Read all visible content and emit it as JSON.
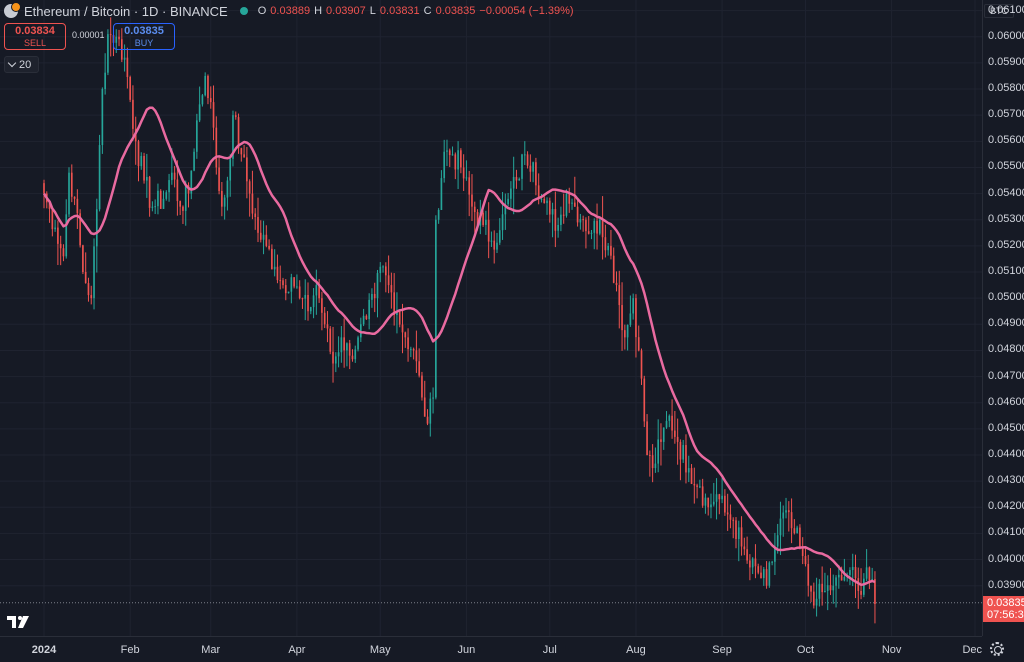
{
  "header": {
    "title": "Ethereum / Bitcoin · 1D · BINANCE",
    "ohlc": [
      {
        "k": "O",
        "v": "0.03889"
      },
      {
        "k": "H",
        "v": "0.03907"
      },
      {
        "k": "L",
        "v": "0.03831"
      },
      {
        "k": "C",
        "v": "0.03835"
      }
    ],
    "change": "−0.00054 (−1.39%)"
  },
  "trade": {
    "sell_price": "0.03834",
    "sell_label": "SELL",
    "spread": "0.00001",
    "buy_price": "0.03835",
    "buy_label": "BUY"
  },
  "indicator": {
    "label": "20"
  },
  "price_axis": {
    "currency": "BTC",
    "ticks": [
      "0.06100",
      "0.06000",
      "0.05900",
      "0.05800",
      "0.05700",
      "0.05600",
      "0.05500",
      "0.05400",
      "0.05300",
      "0.05200",
      "0.05100",
      "0.05000",
      "0.04900",
      "0.04800",
      "0.04700",
      "0.04600",
      "0.04500",
      "0.04400",
      "0.04300",
      "0.04200",
      "0.04100",
      "0.04000",
      "0.03900"
    ],
    "last_price": "0.03835",
    "countdown": "07:56:34"
  },
  "time_axis": {
    "ticks": [
      "2024",
      "Feb",
      "Mar",
      "Apr",
      "May",
      "Jun",
      "Jul",
      "Aug",
      "Sep",
      "Oct",
      "Nov",
      "Dec"
    ]
  },
  "colors": {
    "up": "#26a69a",
    "down": "#ef5350",
    "ma": "#e96aa0",
    "background": "#161a25"
  },
  "chart_data": {
    "type": "candlestick",
    "symbol": "ETHBTC",
    "interval": "1D",
    "ylim": [
      0.0383,
      0.0611
    ],
    "ma_period": 20,
    "anchors": [
      [
        "2024-01-01",
        0.054
      ],
      [
        "2024-01-05",
        0.0527
      ],
      [
        "2024-01-08",
        0.0516
      ],
      [
        "2024-01-10",
        0.0548
      ],
      [
        "2024-01-12",
        0.0538
      ],
      [
        "2024-01-15",
        0.051
      ],
      [
        "2024-01-18",
        0.05
      ],
      [
        "2024-01-20",
        0.0534
      ],
      [
        "2024-01-22",
        0.058
      ],
      [
        "2024-01-24",
        0.0601
      ],
      [
        "2024-01-27",
        0.06
      ],
      [
        "2024-01-30",
        0.0592
      ],
      [
        "2024-02-03",
        0.056
      ],
      [
        "2024-02-06",
        0.0545
      ],
      [
        "2024-02-09",
        0.0535
      ],
      [
        "2024-02-13",
        0.0538
      ],
      [
        "2024-02-16",
        0.0548
      ],
      [
        "2024-02-19",
        0.0535
      ],
      [
        "2024-02-22",
        0.054
      ],
      [
        "2024-02-25",
        0.0568
      ],
      [
        "2024-02-28",
        0.0585
      ],
      [
        "2024-03-01",
        0.0575
      ],
      [
        "2024-03-03",
        0.055
      ],
      [
        "2024-03-05",
        0.0535
      ],
      [
        "2024-03-07",
        0.0545
      ],
      [
        "2024-03-09",
        0.057
      ],
      [
        "2024-03-12",
        0.0555
      ],
      [
        "2024-03-15",
        0.054
      ],
      [
        "2024-03-18",
        0.0525
      ],
      [
        "2024-03-21",
        0.052
      ],
      [
        "2024-03-24",
        0.0512
      ],
      [
        "2024-03-27",
        0.0505
      ],
      [
        "2024-03-30",
        0.0508
      ],
      [
        "2024-04-02",
        0.05
      ],
      [
        "2024-04-05",
        0.0495
      ],
      [
        "2024-04-08",
        0.0505
      ],
      [
        "2024-04-11",
        0.049
      ],
      [
        "2024-04-14",
        0.0475
      ],
      [
        "2024-04-17",
        0.0485
      ],
      [
        "2024-04-20",
        0.0478
      ],
      [
        "2024-04-23",
        0.0485
      ],
      [
        "2024-04-26",
        0.0492
      ],
      [
        "2024-04-29",
        0.05
      ],
      [
        "2024-05-01",
        0.0512
      ],
      [
        "2024-05-04",
        0.0505
      ],
      [
        "2024-05-07",
        0.0495
      ],
      [
        "2024-05-10",
        0.0485
      ],
      [
        "2024-05-13",
        0.048
      ],
      [
        "2024-05-16",
        0.0462
      ],
      [
        "2024-05-18",
        0.0452
      ],
      [
        "2024-05-20",
        0.0462
      ],
      [
        "2024-05-21",
        0.053
      ],
      [
        "2024-05-24",
        0.0556
      ],
      [
        "2024-05-27",
        0.0555
      ],
      [
        "2024-05-30",
        0.055
      ],
      [
        "2024-06-03",
        0.0535
      ],
      [
        "2024-06-07",
        0.0528
      ],
      [
        "2024-06-10",
        0.0522
      ],
      [
        "2024-06-13",
        0.0526
      ],
      [
        "2024-06-16",
        0.0538
      ],
      [
        "2024-06-19",
        0.0545
      ],
      [
        "2024-06-22",
        0.0555
      ],
      [
        "2024-06-25",
        0.0552
      ],
      [
        "2024-06-28",
        0.0538
      ],
      [
        "2024-07-01",
        0.0532
      ],
      [
        "2024-07-04",
        0.0528
      ],
      [
        "2024-07-07",
        0.054
      ],
      [
        "2024-07-10",
        0.0535
      ],
      [
        "2024-07-13",
        0.053
      ],
      [
        "2024-07-16",
        0.0525
      ],
      [
        "2024-07-19",
        0.053
      ],
      [
        "2024-07-22",
        0.052
      ],
      [
        "2024-07-25",
        0.0505
      ],
      [
        "2024-07-28",
        0.0485
      ],
      [
        "2024-07-31",
        0.05
      ],
      [
        "2024-08-02",
        0.048
      ],
      [
        "2024-08-05",
        0.044
      ],
      [
        "2024-08-07",
        0.0435
      ],
      [
        "2024-08-10",
        0.0445
      ],
      [
        "2024-08-13",
        0.0455
      ],
      [
        "2024-08-16",
        0.0445
      ],
      [
        "2024-08-20",
        0.0435
      ],
      [
        "2024-08-24",
        0.0428
      ],
      [
        "2024-08-27",
        0.042
      ],
      [
        "2024-08-30",
        0.0425
      ],
      [
        "2024-09-02",
        0.0418
      ],
      [
        "2024-09-05",
        0.0415
      ],
      [
        "2024-09-08",
        0.0405
      ],
      [
        "2024-09-11",
        0.0397
      ],
      [
        "2024-09-14",
        0.0395
      ],
      [
        "2024-09-17",
        0.039
      ],
      [
        "2024-09-20",
        0.0405
      ],
      [
        "2024-09-23",
        0.0418
      ],
      [
        "2024-09-26",
        0.0412
      ],
      [
        "2024-09-29",
        0.0405
      ],
      [
        "2024-10-02",
        0.039
      ],
      [
        "2024-10-05",
        0.0385
      ],
      [
        "2024-10-08",
        0.0388
      ],
      [
        "2024-10-11",
        0.039
      ],
      [
        "2024-10-14",
        0.0392
      ],
      [
        "2024-10-17",
        0.0396
      ],
      [
        "2024-10-20",
        0.0388
      ],
      [
        "2024-10-23",
        0.0397
      ],
      [
        "2024-10-26",
        0.0383
      ]
    ]
  }
}
